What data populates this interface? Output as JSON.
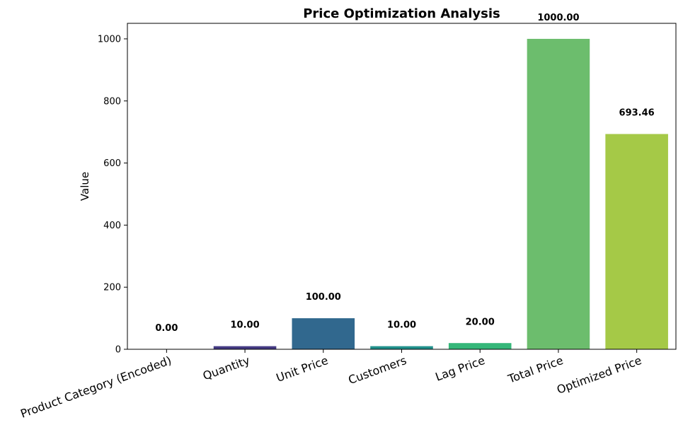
{
  "chart_data": {
    "type": "bar",
    "title": "Price Optimization Analysis",
    "xlabel": "",
    "ylabel": "Value",
    "categories": [
      "Product Category (Encoded)",
      "Quantity",
      "Unit Price",
      "Customers",
      "Lag Price",
      "Total Price",
      "Optimized Price"
    ],
    "values": [
      0,
      10,
      100,
      10,
      20,
      1000,
      693.46
    ],
    "data_labels": [
      "0.00",
      "10.00",
      "100.00",
      "10.00",
      "20.00",
      "1000.00",
      "693.46"
    ],
    "colors": [
      "#450d54",
      "#443a83",
      "#31688e",
      "#21918c",
      "#35b779",
      "#6cbd6d",
      "#a5c947"
    ],
    "ylim": [
      0,
      1050
    ],
    "yticks": [
      0,
      200,
      400,
      600,
      800,
      1000
    ],
    "grid": false,
    "legend": "none"
  }
}
